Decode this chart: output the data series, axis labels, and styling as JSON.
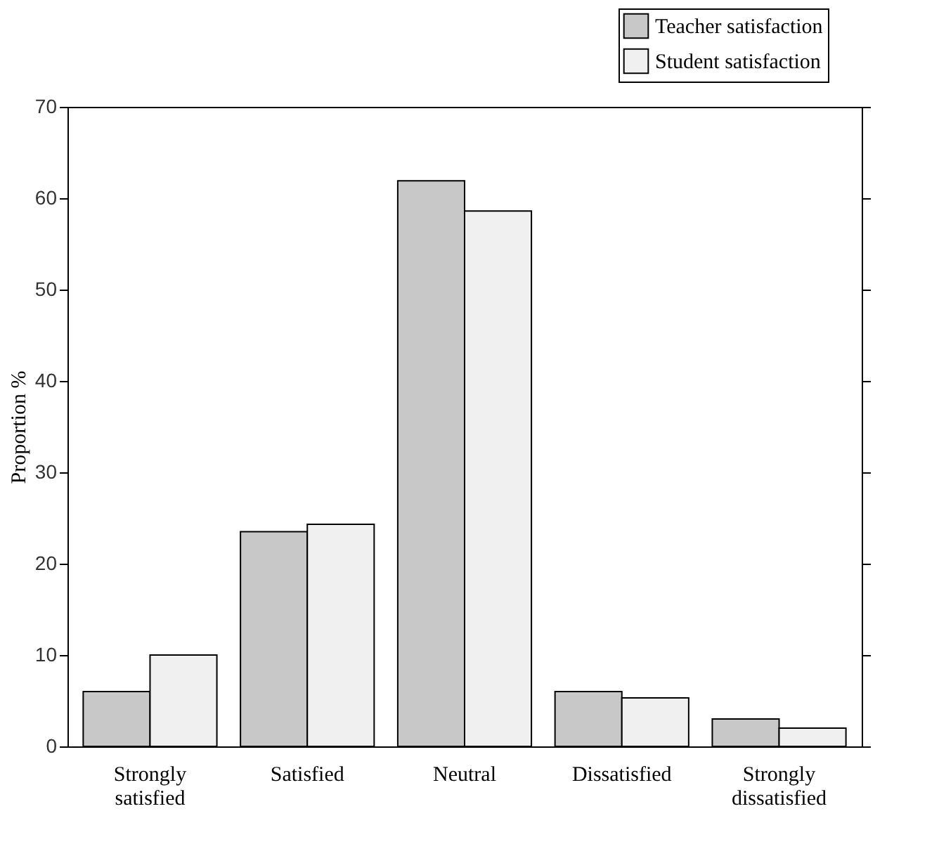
{
  "chart_data": {
    "type": "bar",
    "ylabel": "Proportion %",
    "categories": [
      "Strongly satisfied",
      "Satisfied",
      "Neutral",
      "Dissatisfied",
      "Strongly dissatisfied"
    ],
    "series": [
      {
        "name": "Teacher satisfaction",
        "color": "#c8c8c8",
        "values": [
          6.0,
          23.5,
          61.9,
          6.0,
          3.0
        ]
      },
      {
        "name": "Student satisfaction",
        "color": "#f0f0f0",
        "values": [
          10.0,
          24.3,
          58.6,
          5.3,
          2.0
        ]
      }
    ],
    "ylim": [
      0,
      70
    ],
    "yticks": [
      0,
      10,
      20,
      30,
      40,
      50,
      60,
      70
    ],
    "grid": false,
    "legend": "top right"
  }
}
